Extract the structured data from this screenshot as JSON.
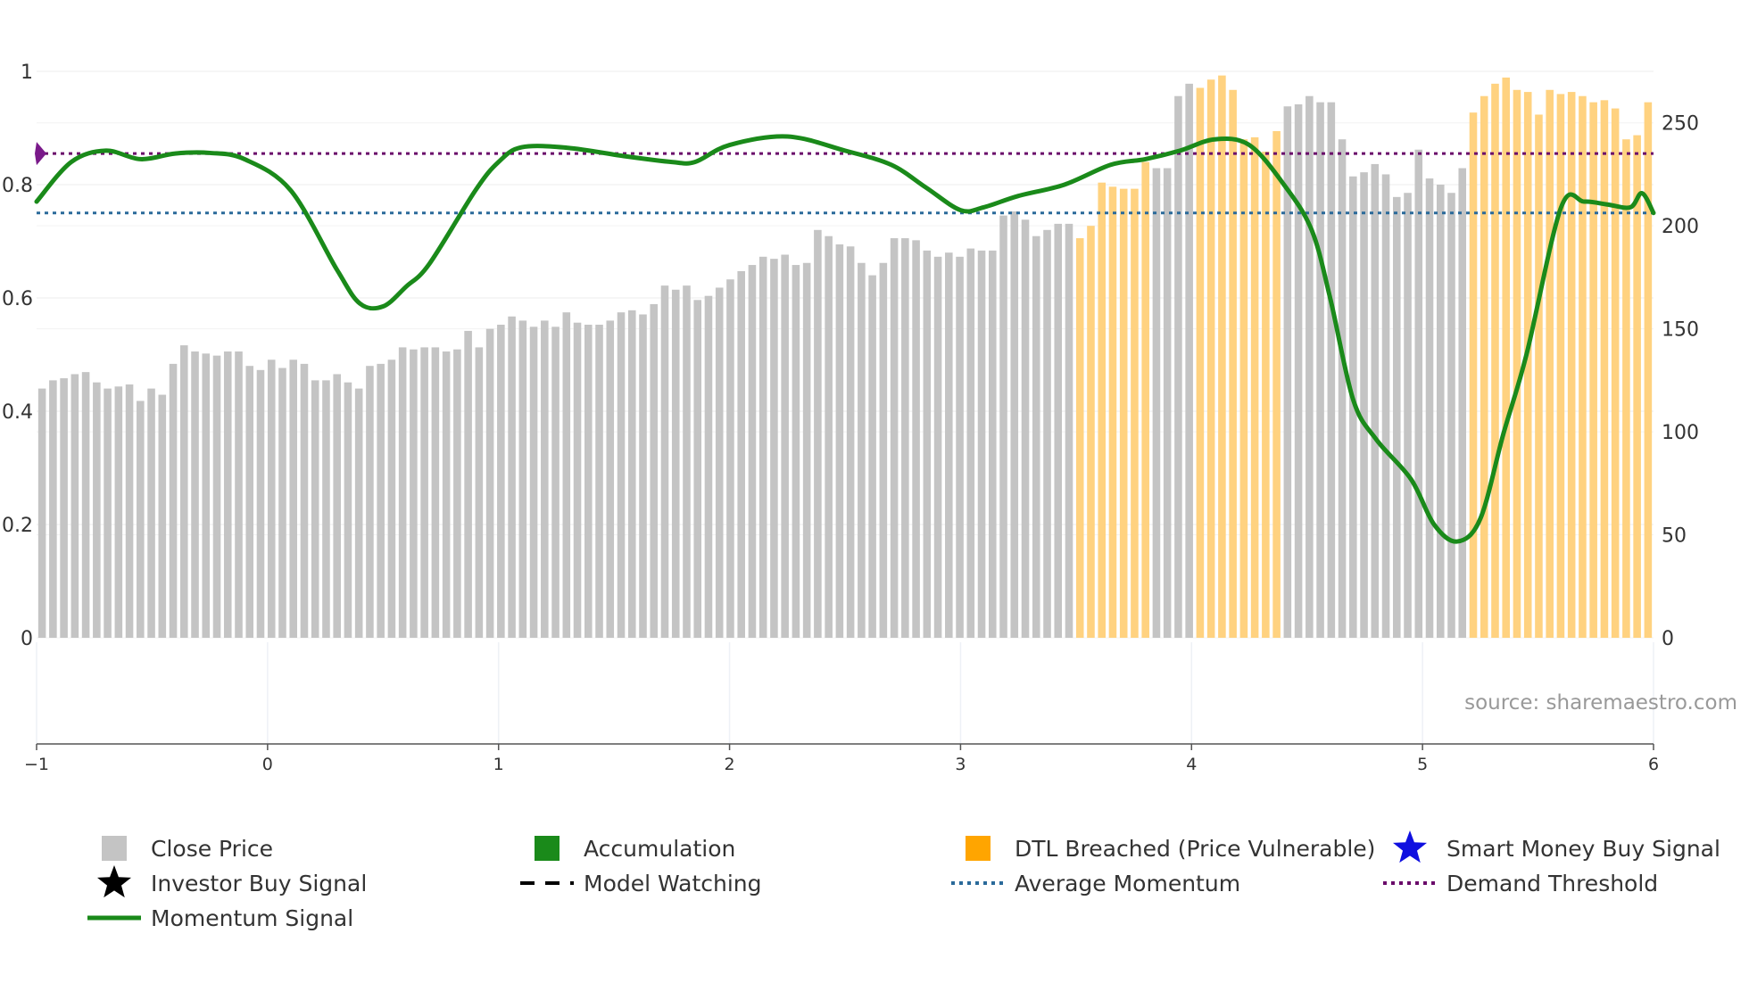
{
  "chart_data": {
    "type": "bar+line",
    "title": "",
    "source_note": "source: sharemaestro.com",
    "left_axis": {
      "ylim": [
        0,
        1
      ],
      "ticks": [
        0,
        0.2,
        0.4,
        0.6,
        0.8,
        1
      ],
      "tick_labels": [
        "0",
        "0.2",
        "0.4",
        "0.6",
        "0.8",
        "1"
      ]
    },
    "right_axis": {
      "ylim": [
        0,
        275
      ],
      "ticks": [
        0,
        50,
        100,
        150,
        200,
        250
      ],
      "tick_labels": [
        "0",
        "50",
        "100",
        "150",
        "200",
        "250"
      ]
    },
    "x_axis": {
      "xlim": [
        -1,
        6
      ],
      "ticks": [
        -1,
        0,
        1,
        2,
        3,
        4,
        5,
        6
      ],
      "tick_labels": [
        "−1",
        "0",
        "1",
        "2",
        "3",
        "4",
        "5",
        "6"
      ]
    },
    "bars": {
      "name": "Close Price",
      "x_start": -1,
      "x_end": 6,
      "colors": {
        "normal": "#c4c4c4",
        "dtl": "#ffd280"
      },
      "dtl_ranges": [
        [
          95,
          101
        ],
        [
          106,
          113
        ],
        [
          131,
          150
        ]
      ],
      "values": [
        121,
        125,
        126,
        128,
        129,
        124,
        121,
        122,
        123,
        115,
        121,
        118,
        133,
        142,
        139,
        138,
        137,
        139,
        139,
        132,
        130,
        135,
        131,
        135,
        133,
        125,
        125,
        128,
        124,
        121,
        132,
        133,
        135,
        141,
        140,
        141,
        141,
        139,
        140,
        149,
        141,
        150,
        152,
        156,
        154,
        151,
        154,
        151,
        158,
        153,
        152,
        152,
        154,
        158,
        159,
        157,
        162,
        171,
        169,
        171,
        164,
        166,
        170,
        174,
        178,
        181,
        185,
        184,
        186,
        181,
        182,
        198,
        195,
        191,
        190,
        182,
        176,
        182,
        194,
        194,
        193,
        188,
        185,
        187,
        185,
        189,
        188,
        188,
        205,
        207,
        203,
        195,
        198,
        201,
        201,
        194,
        200,
        221,
        219,
        218,
        218,
        231,
        228,
        228,
        263,
        269,
        267,
        271,
        273,
        266,
        242,
        243,
        236,
        246,
        258,
        259,
        263,
        260,
        260,
        242,
        224,
        226,
        230,
        225,
        214,
        216,
        237,
        223,
        220,
        216,
        228,
        255,
        263,
        269,
        272,
        266,
        265,
        254,
        266,
        264,
        265,
        263,
        260,
        261,
        257,
        242,
        244,
        260
      ]
    },
    "momentum": {
      "name": "Momentum Signal",
      "color": "#1a8a1a",
      "x": [
        -1,
        -0.85,
        -0.7,
        -0.55,
        -0.4,
        -0.25,
        -0.1,
        0.1,
        0.3,
        0.4,
        0.5,
        0.6,
        0.7,
        0.9,
        1.0,
        1.1,
        1.3,
        1.55,
        1.75,
        1.85,
        2.0,
        2.25,
        2.5,
        2.7,
        2.85,
        3.0,
        3.1,
        3.25,
        3.45,
        3.65,
        3.8,
        3.95,
        4.1,
        4.25,
        4.4,
        4.52,
        4.6,
        4.7,
        4.8,
        4.95,
        5.05,
        5.15,
        5.25,
        5.35,
        5.45,
        5.6,
        5.7,
        5.8,
        5.9,
        5.95,
        6.0
      ],
      "y": [
        0.77,
        0.84,
        0.86,
        0.845,
        0.855,
        0.856,
        0.845,
        0.79,
        0.65,
        0.59,
        0.585,
        0.62,
        0.66,
        0.79,
        0.84,
        0.866,
        0.865,
        0.85,
        0.84,
        0.84,
        0.87,
        0.885,
        0.86,
        0.835,
        0.795,
        0.755,
        0.76,
        0.78,
        0.8,
        0.835,
        0.845,
        0.86,
        0.88,
        0.87,
        0.8,
        0.72,
        0.6,
        0.42,
        0.35,
        0.28,
        0.2,
        0.17,
        0.21,
        0.36,
        0.5,
        0.76,
        0.77,
        0.765,
        0.76,
        0.785,
        0.75
      ]
    },
    "average_momentum": {
      "name": "Average Momentum",
      "value": 0.75,
      "color": "#2a6a9a"
    },
    "demand_threshold": {
      "name": "Demand Threshold",
      "value": 0.855,
      "color": "#6a0a6a"
    },
    "marker": {
      "name": "Demand Threshold marker",
      "x": -1,
      "y": 0.855,
      "color": "#7a1a8a"
    },
    "legend": [
      {
        "label": "Close Price",
        "symbol": "square",
        "color": "#c4c4c4"
      },
      {
        "label": "Accumulation",
        "symbol": "square",
        "color": "#1a8a1a"
      },
      {
        "label": "DTL Breached (Price Vulnerable)",
        "symbol": "square",
        "color": "#ffa500"
      },
      {
        "label": "Smart Money Buy Signal",
        "symbol": "star",
        "color": "#1010e0"
      },
      {
        "label": "Investor Buy Signal",
        "symbol": "star",
        "color": "#000000"
      },
      {
        "label": "Model Watching",
        "symbol": "dash",
        "color": "#000000"
      },
      {
        "label": "Average Momentum",
        "symbol": "dot",
        "color": "#2a6a9a"
      },
      {
        "label": "Demand Threshold",
        "symbol": "dot",
        "color": "#6a0a6a"
      },
      {
        "label": "Momentum Signal",
        "symbol": "line",
        "color": "#1a8a1a"
      }
    ]
  }
}
